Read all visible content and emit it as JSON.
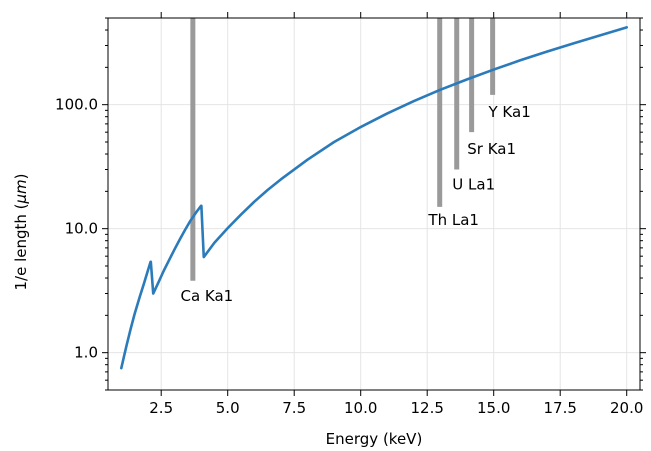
{
  "chart_data": {
    "type": "line",
    "title": "",
    "xlabel": "Energy (keV)",
    "ylabel_main": "1/e length (",
    "ylabel_unit": "μm",
    "ylabel_end": ")",
    "xlim": [
      0.5,
      20.5
    ],
    "ylim": [
      0.5,
      500
    ],
    "yscale": "log",
    "grid": true,
    "x_ticks": [
      2.5,
      5.0,
      7.5,
      10.0,
      12.5,
      15.0,
      17.5,
      20.0
    ],
    "x_tick_labels": [
      "2.5",
      "5.0",
      "7.5",
      "10.0",
      "12.5",
      "15.0",
      "17.5",
      "20.0"
    ],
    "y_ticks": [
      1,
      10,
      100
    ],
    "y_tick_labels": [
      "1.0",
      "10.0",
      "100.0"
    ],
    "line_color": "#2b7bba",
    "emission_line_color": "#9a9a9a",
    "series": [
      {
        "x": [
          1.0,
          1.1,
          1.2,
          1.35,
          1.5,
          1.7,
          1.85,
          2.0,
          2.1,
          2.11,
          2.2,
          2.4,
          2.6,
          2.8,
          3.0,
          3.2,
          3.4,
          3.6,
          3.8,
          4.0,
          4.01,
          4.1,
          4.5,
          5.0,
          5.5,
          6.0,
          6.5,
          7.0,
          8.0,
          9.0,
          10.0,
          11.0,
          12.0,
          13.0,
          14.0,
          15.0,
          16.0,
          17.0,
          18.0,
          19.0,
          20.0
        ],
        "y": [
          0.75,
          0.93,
          1.15,
          1.55,
          2.05,
          2.85,
          3.6,
          4.6,
          5.4,
          5.4,
          3.0,
          3.7,
          4.6,
          5.6,
          6.8,
          8.2,
          9.8,
          11.6,
          13.4,
          15.3,
          15.3,
          5.9,
          7.7,
          10.1,
          13.0,
          16.5,
          20.5,
          25.0,
          36.0,
          50.0,
          66.0,
          85.0,
          107.0,
          132.0,
          160.0,
          192.0,
          228.0,
          268.0,
          312.0,
          362.0,
          420.0
        ]
      }
    ],
    "emission_lines": [
      {
        "label": "Ca Ka1",
        "energy": 3.69,
        "y_bottom": 3.8,
        "y_top": 500
      },
      {
        "label": "Th La1",
        "energy": 12.97,
        "y_bottom": 15.0,
        "y_top": 500
      },
      {
        "label": "U La1",
        "energy": 13.61,
        "y_bottom": 30.0,
        "y_top": 500
      },
      {
        "label": "Sr Ka1",
        "energy": 14.17,
        "y_bottom": 60.0,
        "y_top": 500
      },
      {
        "label": "Y Ka1",
        "energy": 14.96,
        "y_bottom": 120.0,
        "y_top": 500
      }
    ]
  }
}
